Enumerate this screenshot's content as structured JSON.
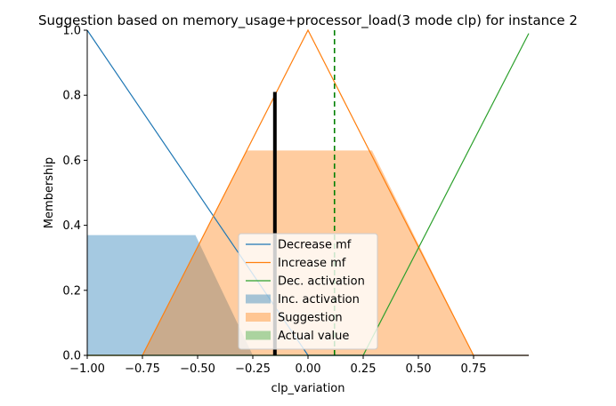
{
  "chart_data": {
    "type": "area",
    "title": "Suggestion based on memory_usage+processor_load(3 mode clp) for instance 2",
    "xlabel": "clp_variation",
    "ylabel": "Membership",
    "xlim": [
      -1.0,
      1.0
    ],
    "ylim": [
      0.0,
      1.0
    ],
    "x_ticks": [
      -1.0,
      -0.75,
      -0.5,
      -0.25,
      0.0,
      0.25,
      0.5,
      0.75
    ],
    "x_tick_labels": [
      "−1.00",
      "−0.75",
      "−0.50",
      "−0.25",
      "0.00",
      "0.25",
      "0.50",
      "0.75"
    ],
    "y_ticks": [
      0.0,
      0.2,
      0.4,
      0.6,
      0.8,
      1.0
    ],
    "y_tick_labels": [
      "0.0",
      "0.2",
      "0.4",
      "0.6",
      "0.8",
      "1.0"
    ],
    "grid": false,
    "legend_position": "bottom-center",
    "lines": [
      {
        "name": "Decrease mf",
        "color": "#1f77b4",
        "x": [
          -1.0,
          0.0,
          1.0
        ],
        "y": [
          1.0,
          0.0,
          0.0
        ]
      },
      {
        "name": "Increase mf",
        "color": "#ff7f0e",
        "x": [
          -1.0,
          -0.75,
          0.0,
          0.75,
          1.0
        ],
        "y": [
          0.0,
          0.0,
          1.0,
          0.0,
          0.0
        ]
      },
      {
        "name": "Dec. activation",
        "color": "#2ca02c",
        "x": [
          -1.0,
          0.25,
          1.0
        ],
        "y": [
          0.0,
          0.0,
          0.99
        ]
      }
    ],
    "fills": [
      {
        "name": "Inc. activation",
        "color": "#1f77b4",
        "alpha": 0.4,
        "x": [
          -1.0,
          -0.51,
          -0.25,
          1.0
        ],
        "y": [
          0.37,
          0.37,
          0.0,
          0.0
        ]
      },
      {
        "name": "Suggestion",
        "color": "#ff7f0e",
        "alpha": 0.4,
        "x": [
          -0.75,
          -0.28,
          0.29,
          0.75,
          1.0
        ],
        "y": [
          0.0,
          0.63,
          0.63,
          0.0,
          0.0
        ]
      },
      {
        "name": "Actual value",
        "color": "#2ca02c",
        "alpha": 0.4,
        "x": [],
        "y": []
      }
    ],
    "markers": [
      {
        "kind": "vbar",
        "color": "#000000",
        "x": -0.15,
        "y": 0.81
      },
      {
        "kind": "vdashed",
        "color": "#008000",
        "x": 0.12
      }
    ],
    "legend": [
      {
        "label": "Decrease mf",
        "kind": "line",
        "color": "#1f77b4"
      },
      {
        "label": "Increase mf",
        "kind": "line",
        "color": "#ff7f0e"
      },
      {
        "label": "Dec. activation",
        "kind": "line",
        "color": "#2ca02c"
      },
      {
        "label": "Inc. activation",
        "kind": "patch",
        "color": "#1f77b4"
      },
      {
        "label": "Suggestion",
        "kind": "patch",
        "color": "#ff7f0e"
      },
      {
        "label": "Actual value",
        "kind": "patch",
        "color": "#2ca02c"
      }
    ]
  }
}
